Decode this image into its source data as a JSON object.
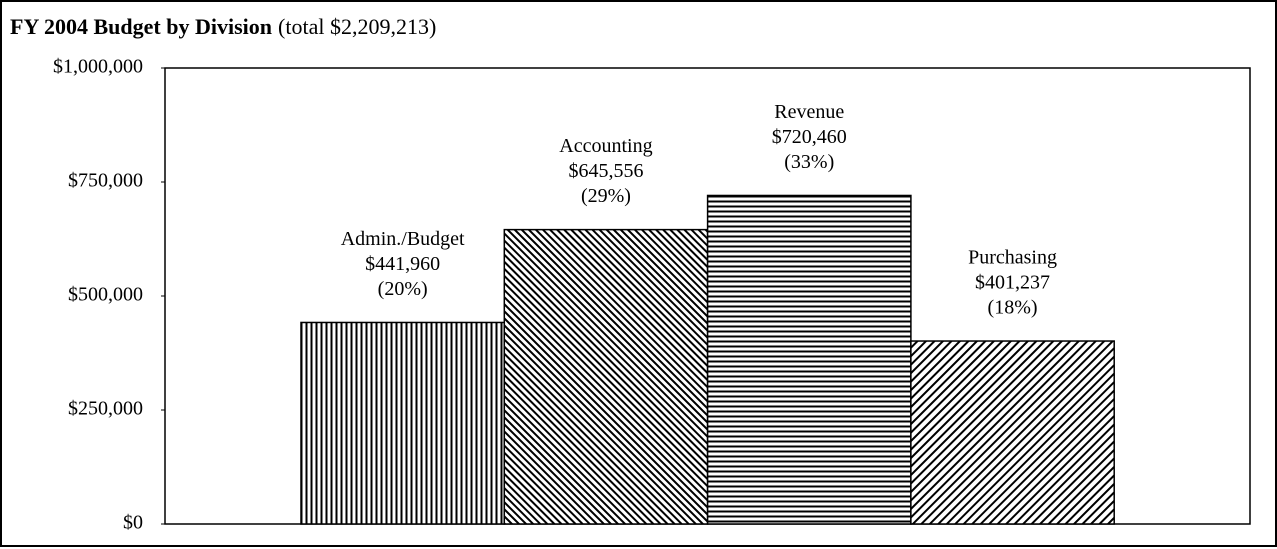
{
  "chart_data": {
    "type": "bar",
    "title": "FY 2004 Budget by Division",
    "subtitle": "(total $2,209,213)",
    "categories": [
      "Admin./Budget",
      "Accounting",
      "Revenue",
      "Purchasing"
    ],
    "values": [
      441960,
      645556,
      720460,
      401237
    ],
    "value_labels": [
      "$441,960",
      "$645,556",
      "$720,460",
      "$401,237"
    ],
    "percent_labels": [
      "(20%)",
      "(29%)",
      "(33%)",
      "(18%)"
    ],
    "patterns": [
      "vertical",
      "backslash",
      "horizontal",
      "slash"
    ],
    "color": "#000000",
    "ylim": [
      0,
      1000000
    ],
    "yticks": [
      {
        "value": 0,
        "label": "$0"
      },
      {
        "value": 250000,
        "label": "$250,000"
      },
      {
        "value": 500000,
        "label": "$500,000"
      },
      {
        "value": 750000,
        "label": "$750,000"
      },
      {
        "value": 1000000,
        "label": "$1,000,000"
      }
    ]
  }
}
